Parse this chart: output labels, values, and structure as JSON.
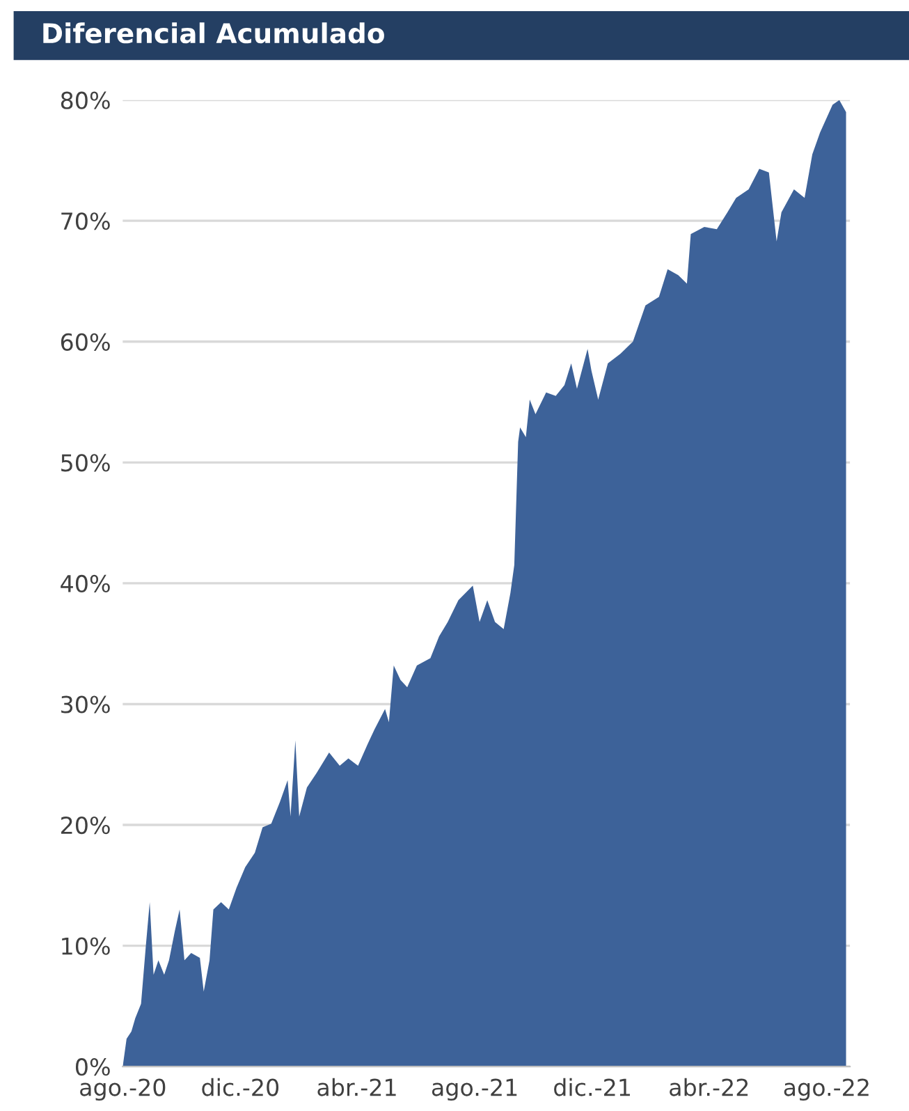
{
  "chart_data": {
    "type": "area",
    "title": "Diferencial Acumulado",
    "x": [
      "2020-08-01",
      "2020-08-05",
      "2020-08-10",
      "2020-08-14",
      "2020-08-20",
      "2020-08-25",
      "2020-08-29",
      "2020-09-02",
      "2020-09-07",
      "2020-09-13",
      "2020-09-18",
      "2020-09-24",
      "2020-09-29",
      "2020-10-04",
      "2020-10-11",
      "2020-10-20",
      "2020-10-24",
      "2020-10-30",
      "2020-11-03",
      "2020-11-11",
      "2020-11-19",
      "2020-11-27",
      "2020-12-06",
      "2020-12-16",
      "2020-12-24",
      "2021-01-02",
      "2021-01-11",
      "2021-01-19",
      "2021-01-22",
      "2021-01-27",
      "2021-01-31",
      "2021-02-08",
      "2021-02-18",
      "2021-03-03",
      "2021-03-14",
      "2021-03-23",
      "2021-04-02",
      "2021-04-12",
      "2021-04-19",
      "2021-04-30",
      "2021-05-04",
      "2021-05-09",
      "2021-05-16",
      "2021-05-23",
      "2021-06-02",
      "2021-06-16",
      "2021-06-25",
      "2021-07-04",
      "2021-07-15",
      "2021-07-30",
      "2021-08-06",
      "2021-08-14",
      "2021-08-22",
      "2021-08-31",
      "2021-09-07",
      "2021-09-11",
      "2021-09-15",
      "2021-09-17",
      "2021-09-23",
      "2021-09-27",
      "2021-10-03",
      "2021-10-14",
      "2021-10-24",
      "2021-11-02",
      "2021-11-09",
      "2021-11-15",
      "2021-11-26",
      "2021-11-30",
      "2021-12-07",
      "2021-12-17",
      "2021-12-30",
      "2022-01-12",
      "2022-01-25",
      "2022-02-08",
      "2022-02-17",
      "2022-02-28",
      "2022-03-09",
      "2022-03-13",
      "2022-03-27",
      "2022-04-09",
      "2022-04-20",
      "2022-04-29",
      "2022-05-12",
      "2022-05-23",
      "2022-06-02",
      "2022-06-10",
      "2022-06-15",
      "2022-06-28",
      "2022-07-09",
      "2022-07-17",
      "2022-07-25",
      "2022-08-07",
      "2022-08-14",
      "2022-08-21"
    ],
    "series": [
      {
        "color": "#3d6299",
        "values": [
          0,
          2.3,
          2.9,
          4,
          5.2,
          10,
          13.6,
          7.6,
          8.8,
          7.6,
          8.8,
          11.2,
          13,
          8.8,
          9.4,
          9,
          6.2,
          8.8,
          13,
          13.6,
          13,
          14.8,
          16.5,
          17.7,
          19.8,
          20.1,
          21.9,
          23.7,
          20.7,
          27,
          20.7,
          23.1,
          24.3,
          26,
          24.9,
          25.5,
          24.9,
          26.7,
          27.9,
          29.6,
          28.5,
          33.2,
          32,
          31.4,
          33.2,
          33.8,
          35.6,
          36.8,
          38.6,
          39.8,
          36.8,
          38.6,
          36.8,
          36.2,
          39.2,
          41.5,
          51.7,
          52.9,
          52.1,
          55.2,
          54,
          55.8,
          55.5,
          56.4,
          58.2,
          56.1,
          59.4,
          57.6,
          55.2,
          58.2,
          59,
          60,
          63,
          63.7,
          66,
          65.5,
          64.8,
          68.9,
          69.5,
          69.3,
          70.7,
          71.9,
          72.6,
          74.3,
          74,
          68.3,
          70.7,
          72.6,
          71.9,
          75.5,
          77.3,
          79.6,
          80,
          79
        ]
      }
    ],
    "xlim": [
      "2020-08-01",
      "2022-08-25"
    ],
    "xticks": [
      {
        "value": "2020-08-01",
        "label": "ago.-20"
      },
      {
        "value": "2020-12-01",
        "label": "dic.-20"
      },
      {
        "value": "2021-04-01",
        "label": "abr.-21"
      },
      {
        "value": "2021-08-01",
        "label": "ago.-21"
      },
      {
        "value": "2021-12-01",
        "label": "dic.-21"
      },
      {
        "value": "2022-04-01",
        "label": "abr.-22"
      },
      {
        "value": "2022-08-01",
        "label": "ago.-22"
      }
    ],
    "ylim": [
      0,
      80
    ],
    "yticks": [
      {
        "value": 0,
        "label": "0%"
      },
      {
        "value": 10,
        "label": "10%"
      },
      {
        "value": 20,
        "label": "20%"
      },
      {
        "value": 30,
        "label": "30%"
      },
      {
        "value": 40,
        "label": "40%"
      },
      {
        "value": 50,
        "label": "50%"
      },
      {
        "value": 60,
        "label": "60%"
      },
      {
        "value": 70,
        "label": "70%"
      },
      {
        "value": 80,
        "label": "80%"
      }
    ],
    "grid": "y"
  }
}
